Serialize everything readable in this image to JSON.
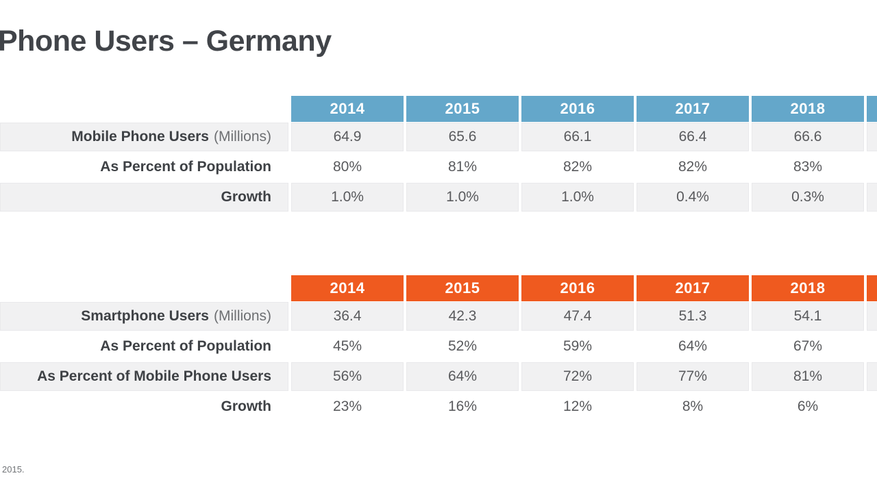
{
  "page": {
    "title": "Phone Users – Germany",
    "footer_note": "2015."
  },
  "colors": {
    "mobile_header_blue": "#64a7ca",
    "smartphone_header_orange": "#ef5a1f",
    "row_shade_gray": "#f1f1f2",
    "title_text": "#414449",
    "value_text": "#595a5d"
  },
  "chart_data": [
    {
      "type": "table",
      "name": "Mobile Phone Users",
      "header_color": "#64a7ca",
      "categories": [
        "2014",
        "2015",
        "2016",
        "2017",
        "2018"
      ],
      "series": [
        {
          "name": "Mobile Phone Users",
          "name_suffix": "(Millions)",
          "values": [
            64.9,
            65.6,
            66.1,
            66.4,
            66.6
          ],
          "display": [
            "64.9",
            "65.6",
            "66.1",
            "66.4",
            "66.6"
          ]
        },
        {
          "name": "As Percent of Population",
          "values": [
            80,
            81,
            82,
            82,
            83
          ],
          "display": [
            "80%",
            "81%",
            "82%",
            "82%",
            "83%"
          ]
        },
        {
          "name": "Growth",
          "values": [
            1.0,
            1.0,
            1.0,
            0.4,
            0.3
          ],
          "display": [
            "1.0%",
            "1.0%",
            "1.0%",
            "0.4%",
            "0.3%"
          ]
        }
      ]
    },
    {
      "type": "table",
      "name": "Smartphone Users",
      "header_color": "#ef5a1f",
      "categories": [
        "2014",
        "2015",
        "2016",
        "2017",
        "2018"
      ],
      "series": [
        {
          "name": "Smartphone Users",
          "name_suffix": "(Millions)",
          "values": [
            36.4,
            42.3,
            47.4,
            51.3,
            54.1
          ],
          "display": [
            "36.4",
            "42.3",
            "47.4",
            "51.3",
            "54.1"
          ]
        },
        {
          "name": "As Percent of Population",
          "values": [
            45,
            52,
            59,
            64,
            67
          ],
          "display": [
            "45%",
            "52%",
            "59%",
            "64%",
            "67%"
          ]
        },
        {
          "name": "As Percent of Mobile Phone Users",
          "values": [
            56,
            64,
            72,
            77,
            81
          ],
          "display": [
            "56%",
            "64%",
            "72%",
            "77%",
            "81%"
          ]
        },
        {
          "name": "Growth",
          "values": [
            23,
            16,
            12,
            8,
            6
          ],
          "display": [
            "23%",
            "16%",
            "12%",
            "8%",
            "6%"
          ]
        }
      ]
    }
  ]
}
